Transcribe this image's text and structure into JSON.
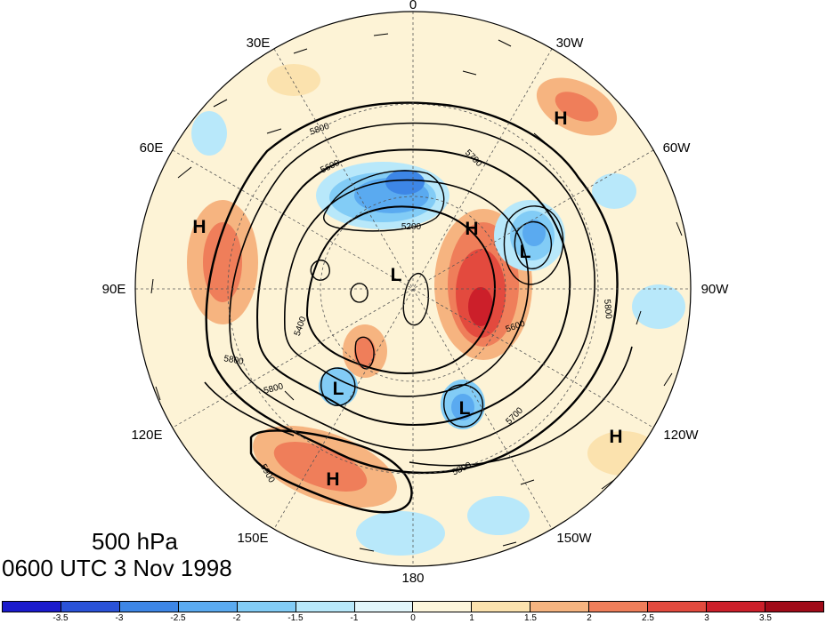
{
  "title": {
    "level": "500 hPa",
    "time": "0600 UTC 3 Nov 1998"
  },
  "longitude_labels": [
    "0",
    "30W",
    "60W",
    "90W",
    "120W",
    "150W",
    "180",
    "150E",
    "120E",
    "90E",
    "60E",
    "30E"
  ],
  "highs_lows": [
    {
      "type": "H",
      "label": "H",
      "region": "North Atlantic"
    },
    {
      "type": "H",
      "label": "H",
      "region": "Central Asia"
    },
    {
      "type": "H",
      "label": "H",
      "region": "Northern Canada"
    },
    {
      "type": "L",
      "label": "L",
      "region": "Hudson Bay"
    },
    {
      "type": "L",
      "label": "L",
      "region": "Arctic"
    },
    {
      "type": "L",
      "label": "L",
      "region": "East Siberia"
    },
    {
      "type": "L",
      "label": "L",
      "region": "Alaska"
    },
    {
      "type": "H",
      "label": "H",
      "region": "Eastern Pacific"
    },
    {
      "type": "H",
      "label": "H",
      "region": "Western Pacific"
    }
  ],
  "contour_labels": [
    "5200",
    "5400",
    "5600",
    "5700",
    "5800",
    "5900"
  ],
  "colorbar": {
    "ticks": [
      "-3.5",
      "-3",
      "-2.5",
      "-2",
      "-1.5",
      "-1",
      "0",
      "1",
      "1.5",
      "2",
      "2.5",
      "3",
      "3.5"
    ],
    "colors": [
      "#1a1acc",
      "#2a52d8",
      "#3d86e6",
      "#5aaaf0",
      "#82ccf6",
      "#b8e8fa",
      "#e2f6fb",
      "#fdf6dc",
      "#fbe2ae",
      "#f6b480",
      "#ef7e5a",
      "#e34a3e",
      "#cc1f2a",
      "#a00a18"
    ]
  }
}
